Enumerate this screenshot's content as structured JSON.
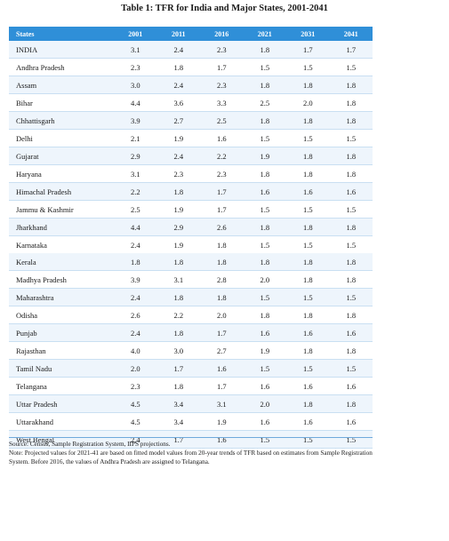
{
  "title": "Table 1: TFR for India and Major States, 2001-2041",
  "header": {
    "states": "States",
    "years": [
      "2001",
      "2011",
      "2016",
      "2021",
      "2031",
      "2041"
    ]
  },
  "table1": [
    {
      "state": "INDIA",
      "v": [
        "3.1",
        "2.4",
        "2.3",
        "1.8",
        "1.7",
        "1.7"
      ]
    },
    {
      "state": "Andhra Pradesh",
      "v": [
        "2.3",
        "1.8",
        "1.7",
        "1.5",
        "1.5",
        "1.5"
      ]
    },
    {
      "state": "Assam",
      "v": [
        "3.0",
        "2.4",
        "2.3",
        "1.8",
        "1.8",
        "1.8"
      ]
    },
    {
      "state": "Bihar",
      "v": [
        "4.4",
        "3.6",
        "3.3",
        "2.5",
        "2.0",
        "1.8"
      ]
    },
    {
      "state": "Chhattisgarh",
      "v": [
        "3.9",
        "2.7",
        "2.5",
        "1.8",
        "1.8",
        "1.8"
      ]
    },
    {
      "state": "Delhi",
      "v": [
        "2.1",
        "1.9",
        "1.6",
        "1.5",
        "1.5",
        "1.5"
      ]
    },
    {
      "state": "Gujarat",
      "v": [
        "2.9",
        "2.4",
        "2.2",
        "1.9",
        "1.8",
        "1.8"
      ]
    },
    {
      "state": "Haryana",
      "v": [
        "3.1",
        "2.3",
        "2.3",
        "1.8",
        "1.8",
        "1.8"
      ]
    },
    {
      "state": "Himachal Pradesh",
      "v": [
        "2.2",
        "1.8",
        "1.7",
        "1.6",
        "1.6",
        "1.6"
      ]
    },
    {
      "state": "Jammu & Kashmir",
      "v": [
        "2.5",
        "1.9",
        "1.7",
        "1.5",
        "1.5",
        "1.5"
      ]
    },
    {
      "state": "Jharkhand",
      "v": [
        "4.4",
        "2.9",
        "2.6",
        "1.8",
        "1.8",
        "1.8"
      ]
    },
    {
      "state": "Karnataka",
      "v": [
        "2.4",
        "1.9",
        "1.8",
        "1.5",
        "1.5",
        "1.5"
      ]
    }
  ],
  "table2": [
    {
      "state": "Kerala",
      "v": [
        "1.8",
        "1.8",
        "1.8",
        "1.8",
        "1.8",
        "1.8"
      ]
    },
    {
      "state": "Madhya Pradesh",
      "v": [
        "3.9",
        "3.1",
        "2.8",
        "2.0",
        "1.8",
        "1.8"
      ]
    },
    {
      "state": "Maharashtra",
      "v": [
        "2.4",
        "1.8",
        "1.8",
        "1.5",
        "1.5",
        "1.5"
      ]
    },
    {
      "state": "Odisha",
      "v": [
        "2.6",
        "2.2",
        "2.0",
        "1.8",
        "1.8",
        "1.8"
      ]
    },
    {
      "state": "Punjab",
      "v": [
        "2.4",
        "1.8",
        "1.7",
        "1.6",
        "1.6",
        "1.6"
      ]
    },
    {
      "state": "Rajasthan",
      "v": [
        "4.0",
        "3.0",
        "2.7",
        "1.9",
        "1.8",
        "1.8"
      ]
    },
    {
      "state": "Tamil Nadu",
      "v": [
        "2.0",
        "1.7",
        "1.6",
        "1.5",
        "1.5",
        "1.5"
      ]
    },
    {
      "state": "Telangana",
      "v": [
        "2.3",
        "1.8",
        "1.7",
        "1.6",
        "1.6",
        "1.6"
      ]
    },
    {
      "state": "Uttar Pradesh",
      "v": [
        "4.5",
        "3.4",
        "3.1",
        "2.0",
        "1.8",
        "1.8"
      ]
    },
    {
      "state": "Uttarakhand",
      "v": [
        "4.5",
        "3.4",
        "1.9",
        "1.6",
        "1.6",
        "1.6"
      ]
    },
    {
      "state": "West Bengal",
      "v": [
        "2.4",
        "1.7",
        "1.6",
        "1.5",
        "1.5",
        "1.5"
      ]
    }
  ],
  "footer": {
    "source": "Source: Census, Sample Registration System, IIPS projections.",
    "note": "Note: Projected values for 2021-41 are based on fitted model values from 20-year trends of TFR based on estimates from Sample Registration System. Before 2016, the values of Andhra Pradesh are assigned to Telangana."
  }
}
